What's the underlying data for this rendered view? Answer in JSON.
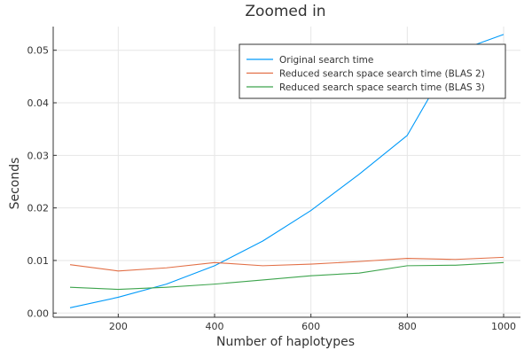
{
  "chart_data": {
    "type": "line",
    "title": "Zoomed in",
    "xlabel": "Number of haplotypes",
    "ylabel": "Seconds",
    "xlim": [
      65,
      1035
    ],
    "ylim": [
      -0.0008,
      0.0545
    ],
    "xticks": [
      200,
      400,
      600,
      800,
      1000
    ],
    "yticks": [
      0.0,
      0.01,
      0.02,
      0.03,
      0.04,
      0.05
    ],
    "ytick_labels": [
      "0.00",
      "0.01",
      "0.02",
      "0.03",
      "0.04",
      "0.05"
    ],
    "grid": true,
    "legend_position": "top-right",
    "x": [
      100,
      200,
      300,
      400,
      500,
      600,
      700,
      800,
      900,
      1000
    ],
    "series": [
      {
        "name": "Original search time",
        "color": "#009af9",
        "values": [
          0.001,
          0.003,
          0.0055,
          0.009,
          0.0137,
          0.0195,
          0.0264,
          0.0338,
          0.0497,
          0.053
        ]
      },
      {
        "name": "Reduced search space search time (BLAS 2)",
        "color": "#e26f46",
        "values": [
          0.0092,
          0.008,
          0.0086,
          0.0096,
          0.009,
          0.0093,
          0.0098,
          0.0104,
          0.0102,
          0.0106
        ]
      },
      {
        "name": "Reduced search space search time (BLAS 3)",
        "color": "#3da44d",
        "values": [
          0.0049,
          0.0045,
          0.0049,
          0.0055,
          0.0063,
          0.0071,
          0.0076,
          0.009,
          0.0091,
          0.0096
        ]
      }
    ]
  }
}
